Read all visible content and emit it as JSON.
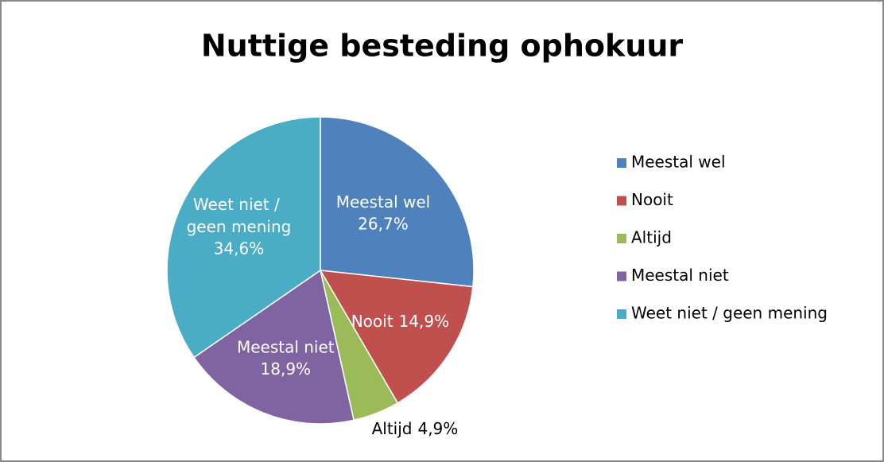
{
  "chart_data": {
    "type": "pie",
    "title": "Nuttige besteding ophokuur",
    "categories": [
      "Meestal wel",
      "Nooit",
      "Altijd",
      "Meestal niet",
      "Weet niet / geen mening"
    ],
    "values": [
      26.7,
      14.9,
      4.9,
      18.9,
      34.6
    ],
    "value_labels": [
      "26,7%",
      "14,9%",
      "4,9%",
      "18,9%",
      "34,6%"
    ],
    "colors": [
      "#4f81bd",
      "#c0504d",
      "#9bbb59",
      "#8064a2",
      "#4bacc6"
    ],
    "legend": "right"
  }
}
